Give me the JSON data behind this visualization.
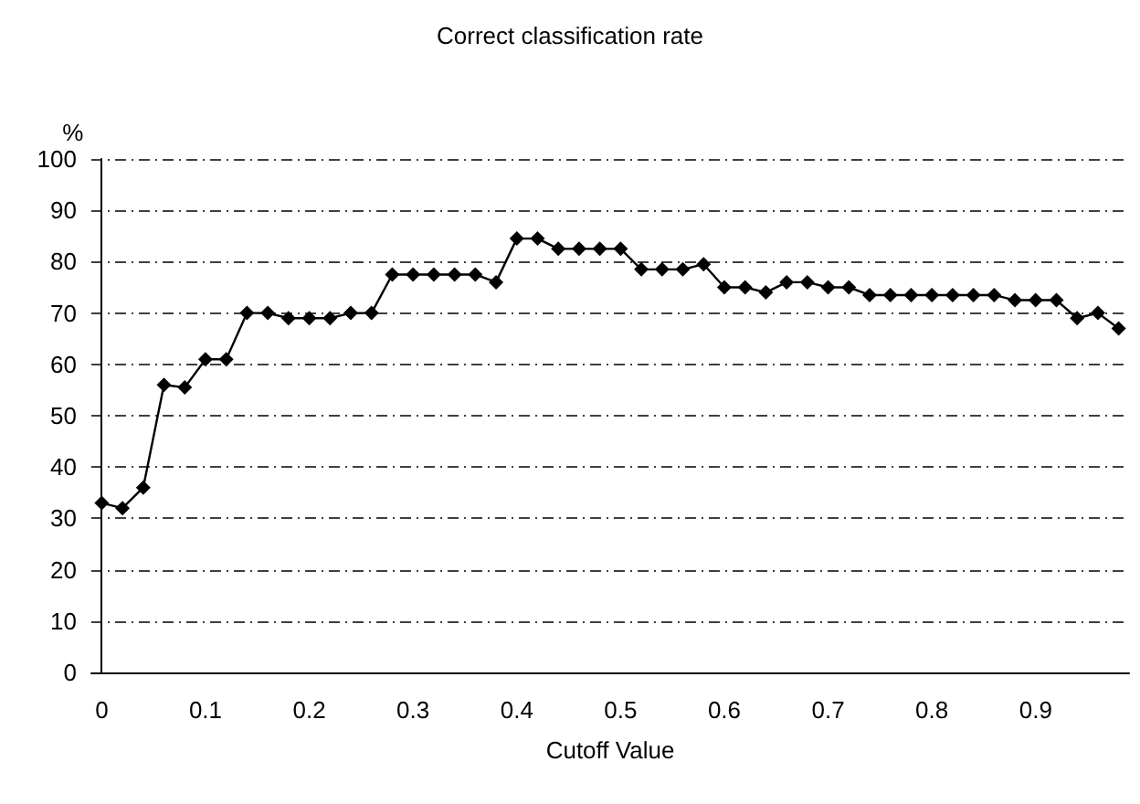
{
  "chart_data": {
    "type": "line",
    "title": "Correct classification rate",
    "xlabel": "Cutoff Value",
    "ylabel": "%",
    "x": [
      0,
      0.02,
      0.04,
      0.06,
      0.08,
      0.1,
      0.12,
      0.14,
      0.16,
      0.18,
      0.2,
      0.22,
      0.24,
      0.26,
      0.28,
      0.3,
      0.32,
      0.34,
      0.36,
      0.38,
      0.4,
      0.42,
      0.44,
      0.46,
      0.48,
      0.5,
      0.52,
      0.54,
      0.56,
      0.58,
      0.6,
      0.62,
      0.64,
      0.66,
      0.68,
      0.7,
      0.72,
      0.74,
      0.76,
      0.78,
      0.8,
      0.82,
      0.84,
      0.86,
      0.88,
      0.9,
      0.92,
      0.94,
      0.96,
      0.98
    ],
    "series": [
      {
        "color": "#000000",
        "values": [
          33,
          32,
          36,
          56,
          55.5,
          61,
          61,
          70,
          70,
          69,
          69,
          69,
          70,
          70,
          77.5,
          77.5,
          77.5,
          77.5,
          77.5,
          76,
          84.5,
          84.5,
          82.5,
          82.5,
          82.5,
          82.5,
          78.5,
          78.5,
          78.5,
          79.5,
          75,
          75,
          74,
          76,
          76,
          75,
          75,
          73.5,
          73.5,
          73.5,
          73.5,
          73.5,
          73.5,
          73.5,
          72.5,
          72.5,
          72.5,
          69,
          70,
          67
        ]
      }
    ],
    "xlim": [
      -0.01,
      0.99
    ],
    "xticks": [
      0,
      0.1,
      0.2,
      0.3,
      0.4,
      0.5,
      0.6,
      0.7,
      0.8,
      0.9
    ],
    "ylim": [
      0,
      100
    ],
    "yticks": [
      0,
      10,
      20,
      30,
      40,
      50,
      60,
      70,
      80,
      90,
      100
    ],
    "grid": "y",
    "marker": "diamond",
    "line_style": "solid"
  }
}
